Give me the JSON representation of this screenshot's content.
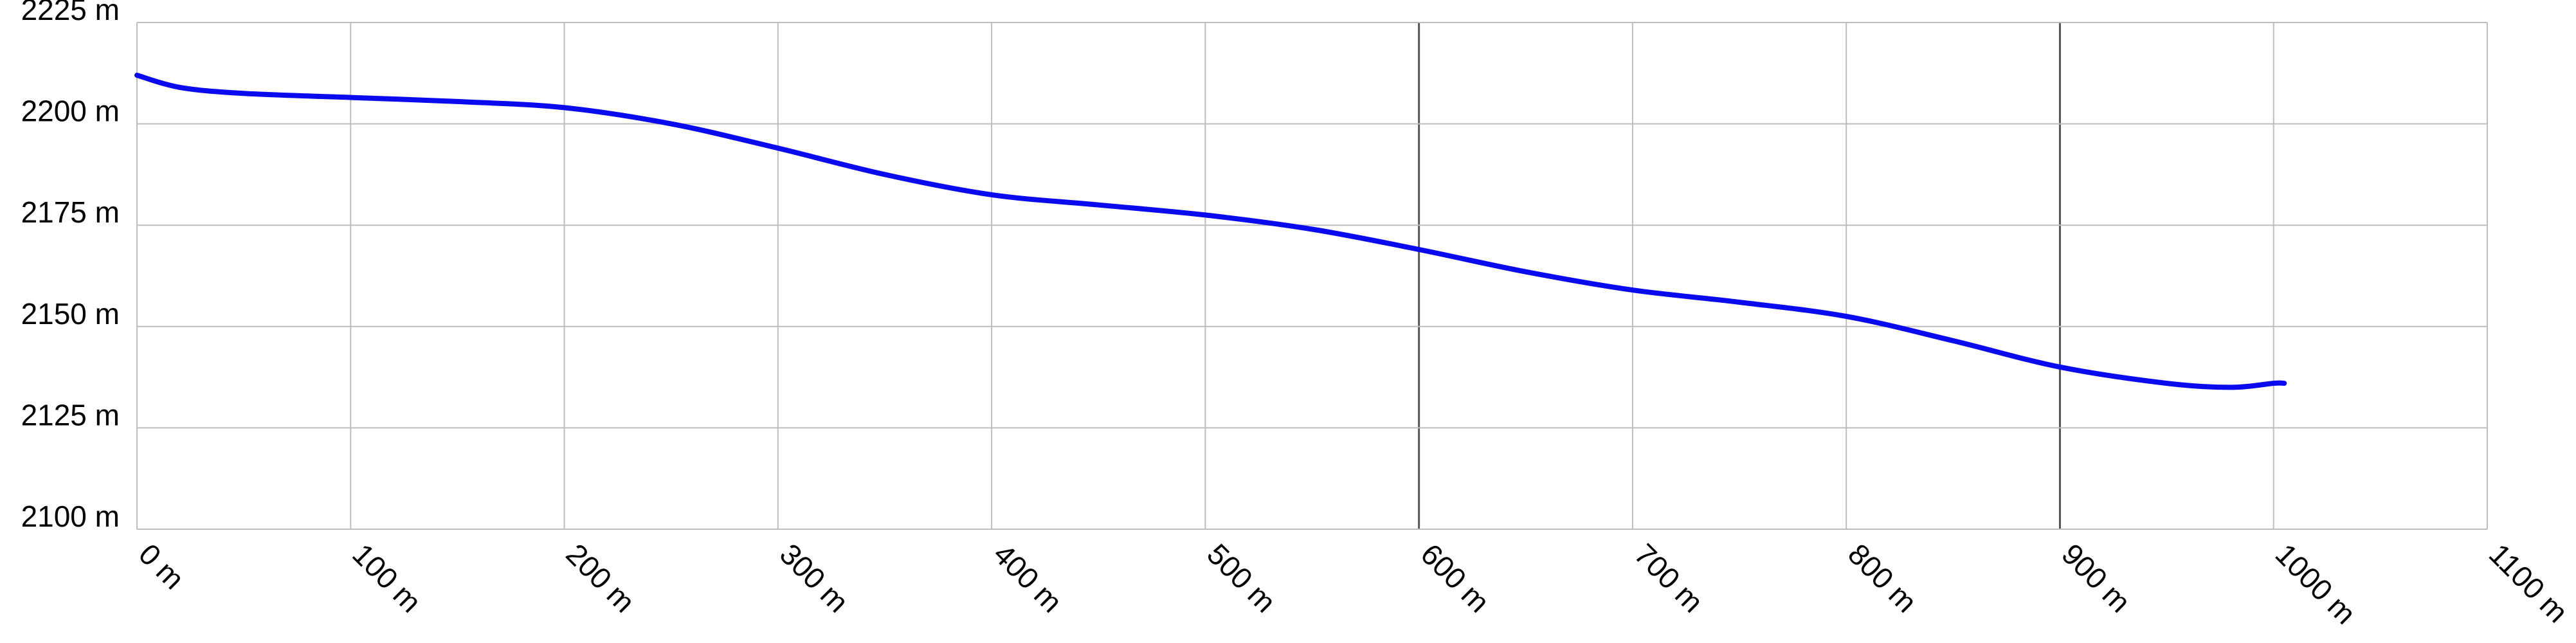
{
  "chart_data": {
    "type": "line",
    "title": "",
    "xlabel": "",
    "ylabel": "",
    "x_unit": "m",
    "y_unit": "m",
    "xlim": [
      0,
      1100
    ],
    "ylim": [
      2100,
      2225
    ],
    "x_ticks": [
      "0 m",
      "100 m",
      "200 m",
      "300 m",
      "400 m",
      "500 m",
      "600 m",
      "700 m",
      "800 m",
      "900 m",
      "1000 m",
      "1100 m"
    ],
    "y_ticks": [
      "2225 m",
      "2200 m",
      "2175 m",
      "2150 m",
      "2125 m",
      "2100 m"
    ],
    "grid": true,
    "series": [
      {
        "name": "",
        "color": "#0a0aee",
        "x": [
          0,
          20,
          50,
          100,
          150,
          200,
          250,
          300,
          350,
          400,
          450,
          500,
          550,
          600,
          650,
          700,
          750,
          800,
          850,
          900,
          950,
          980,
          1000,
          1005
        ],
        "y": [
          2212,
          2209,
          2207.5,
          2206.5,
          2205.5,
          2204,
          2200,
          2194,
          2187.5,
          2182.5,
          2180,
          2177.5,
          2174,
          2169,
          2163.5,
          2159,
          2156,
          2152.5,
          2146.5,
          2140,
          2136,
          2135,
          2136,
          2136
        ]
      }
    ]
  }
}
